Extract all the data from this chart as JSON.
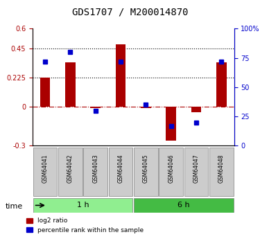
{
  "title": "GDS1707 / M200014870",
  "samples": [
    "GSM64041",
    "GSM64042",
    "GSM64043",
    "GSM64044",
    "GSM64045",
    "GSM64046",
    "GSM64047",
    "GSM64048"
  ],
  "log2_ratio": [
    0.225,
    0.34,
    -0.01,
    0.48,
    -0.01,
    -0.26,
    -0.04,
    0.34
  ],
  "percentile_rank": [
    0.72,
    0.8,
    0.3,
    0.72,
    0.35,
    0.17,
    0.2,
    0.72
  ],
  "ylim_left": [
    -0.3,
    0.6
  ],
  "ylim_right": [
    0,
    100
  ],
  "yticks_left": [
    -0.3,
    0,
    0.225,
    0.45,
    0.6
  ],
  "ytick_labels_left": [
    "-0.3",
    "0",
    "0.225",
    "0.45",
    "0.6"
  ],
  "yticks_right": [
    0,
    25,
    50,
    75,
    100
  ],
  "ytick_labels_right": [
    "0",
    "25",
    "50",
    "75",
    "100%"
  ],
  "hlines_dotted": [
    0.225,
    0.45
  ],
  "hline_dashed": 0,
  "bar_color": "#AA0000",
  "dot_color": "#0000CC",
  "groups": [
    {
      "label": "1 h",
      "start": 0,
      "end": 4,
      "color": "#90EE90"
    },
    {
      "label": "6 h",
      "start": 4,
      "end": 8,
      "color": "#44BB44"
    }
  ],
  "legend_bar_label": "log2 ratio",
  "legend_dot_label": "percentile rank within the sample",
  "time_label": "time",
  "background_color": "#ffffff"
}
